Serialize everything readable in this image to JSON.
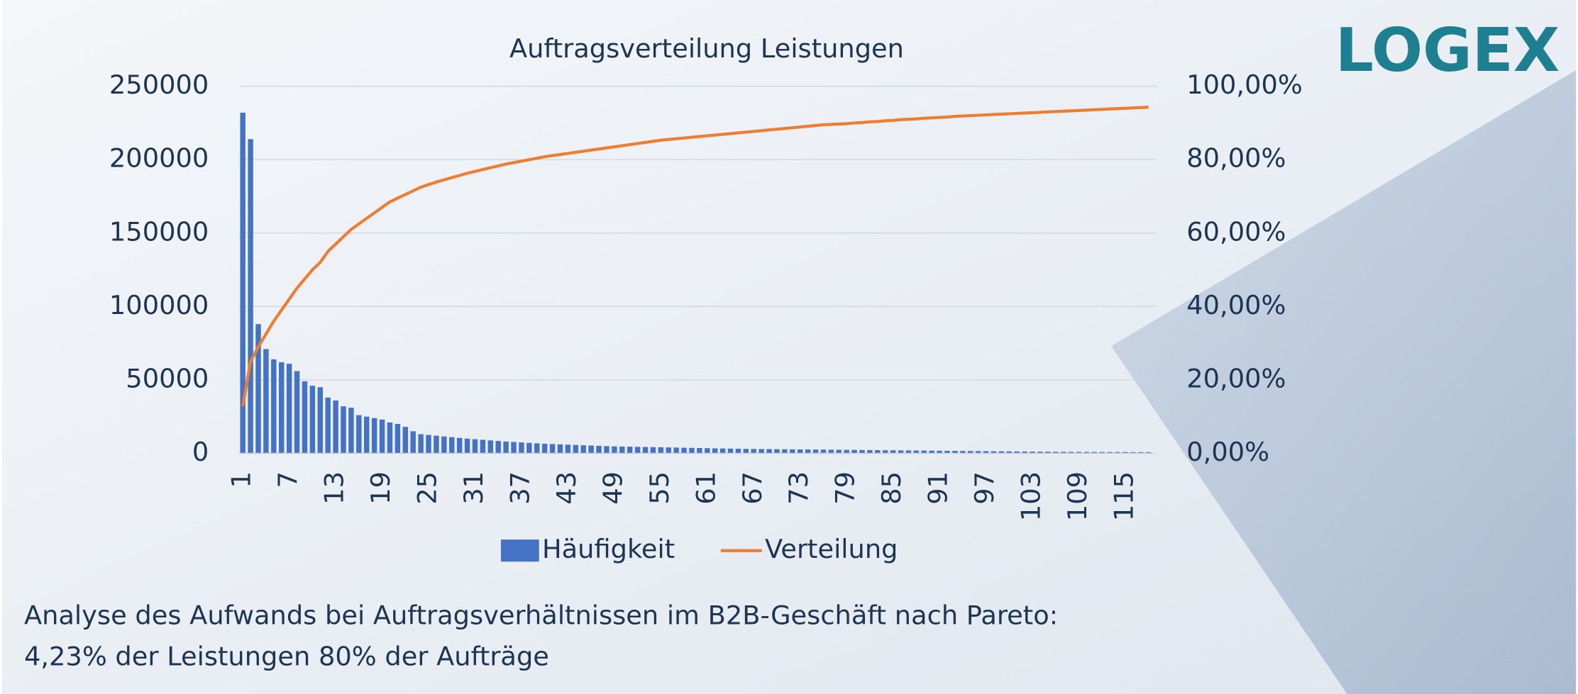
{
  "chart_data": {
    "type": "bar",
    "title": "Auftragsverteilung Leistungen",
    "logo": "LOGEX",
    "caption": [
      "Analyse des Aufwands bei Auftragsverhältnissen im B2B-Geschäft nach Pareto:",
      "4,23% der Leistungen 80% der Aufträge"
    ],
    "categories": [
      "1",
      null,
      null,
      null,
      null,
      null,
      "7",
      null,
      null,
      null,
      null,
      null,
      "13",
      null,
      null,
      null,
      null,
      null,
      "19",
      null,
      null,
      null,
      null,
      null,
      "25",
      null,
      null,
      null,
      null,
      null,
      "31",
      null,
      null,
      null,
      null,
      null,
      "37",
      null,
      null,
      null,
      null,
      null,
      "43",
      null,
      null,
      null,
      null,
      null,
      "49",
      null,
      null,
      null,
      null,
      null,
      "55",
      null,
      null,
      null,
      null,
      null,
      "61",
      null,
      null,
      null,
      null,
      null,
      "67",
      null,
      null,
      null,
      null,
      null,
      "73",
      null,
      null,
      null,
      null,
      null,
      "79",
      null,
      null,
      null,
      null,
      null,
      "85",
      null,
      null,
      null,
      null,
      null,
      "91",
      null,
      null,
      null,
      null,
      null,
      "97",
      null,
      null,
      null,
      null,
      null,
      "103",
      null,
      null,
      null,
      null,
      null,
      "109",
      null,
      null,
      null,
      null,
      null,
      "115",
      null,
      null,
      null
    ],
    "series": [
      {
        "name": "Häufigkeit",
        "type": "bar",
        "color": "#4472c4",
        "values": [
          232000,
          214000,
          88000,
          71000,
          64000,
          62000,
          61000,
          56000,
          49000,
          46000,
          45000,
          38000,
          36000,
          32000,
          31000,
          26000,
          25000,
          24000,
          23000,
          21000,
          20000,
          18000,
          15000,
          13000,
          12500,
          12000,
          11500,
          11000,
          10500,
          10000,
          9600,
          9200,
          8800,
          8400,
          8000,
          7700,
          7400,
          7100,
          6800,
          6500,
          6300,
          6100,
          5900,
          5700,
          5500,
          5300,
          5100,
          4900,
          4700,
          4600,
          4500,
          4400,
          4300,
          4200,
          4100,
          4000,
          3900,
          3800,
          3700,
          3600,
          3500,
          3400,
          3300,
          3200,
          3100,
          3000,
          2950,
          2900,
          2850,
          2800,
          2750,
          2700,
          2650,
          2600,
          2550,
          2500,
          2450,
          2400,
          2350,
          2300,
          2250,
          2200,
          2150,
          2100,
          2050,
          2000,
          1950,
          1900,
          1850,
          1800,
          1750,
          1700,
          1650,
          1600,
          1550,
          1500,
          1450,
          1400,
          1350,
          1300,
          1250,
          1200,
          1150,
          1100,
          1050,
          1000,
          980,
          960,
          940,
          920,
          900,
          880,
          860,
          840,
          820,
          800,
          780,
          760
        ]
      },
      {
        "name": "Verteilung",
        "type": "line",
        "axis": "y2",
        "color": "#ed7d31",
        "values": [
          12.8,
          25,
          29,
          32.5,
          36,
          39,
          42,
          45,
          47.5,
          50,
          52,
          55,
          57,
          59,
          61,
          62.5,
          64,
          65.5,
          67,
          68.5,
          69.5,
          70.5,
          71.5,
          72.5,
          73.2,
          73.9,
          74.5,
          75.1,
          75.7,
          76.3,
          76.8,
          77.3,
          77.8,
          78.3,
          78.8,
          79.2,
          79.6,
          80,
          80.4,
          80.8,
          81.1,
          81.4,
          81.7,
          82,
          82.3,
          82.6,
          82.9,
          83.2,
          83.5,
          83.8,
          84.1,
          84.4,
          84.7,
          85,
          85.3,
          85.5,
          85.7,
          85.9,
          86.1,
          86.3,
          86.5,
          86.7,
          86.9,
          87.1,
          87.3,
          87.5,
          87.7,
          87.9,
          88.1,
          88.3,
          88.5,
          88.7,
          88.9,
          89.1,
          89.3,
          89.5,
          89.6,
          89.7,
          89.8,
          90,
          90.1,
          90.3,
          90.4,
          90.6,
          90.7,
          90.9,
          91,
          91.1,
          91.3,
          91.4,
          91.5,
          91.6,
          91.8,
          91.9,
          92,
          92.1,
          92.2,
          92.3,
          92.4,
          92.5,
          92.6,
          92.7,
          92.8,
          92.9,
          93,
          93.1,
          93.2,
          93.3,
          93.4,
          93.5,
          93.6,
          93.7,
          93.8,
          93.9,
          94,
          94.1,
          94.2,
          94.3
        ]
      }
    ],
    "ylim": [
      0,
      250000
    ],
    "yticks": [
      0,
      50000,
      100000,
      150000,
      200000,
      250000
    ],
    "y2lim": [
      0,
      100
    ],
    "y2ticks": [
      {
        "value": 0,
        "label": "0,00%"
      },
      {
        "value": 20,
        "label": "20,00%"
      },
      {
        "value": 40,
        "label": "40,00%"
      },
      {
        "value": 60,
        "label": "60,00%"
      },
      {
        "value": 80,
        "label": "80,00%"
      },
      {
        "value": 100,
        "label": "100,00%"
      }
    ],
    "grid": true,
    "legend": "bottom"
  }
}
